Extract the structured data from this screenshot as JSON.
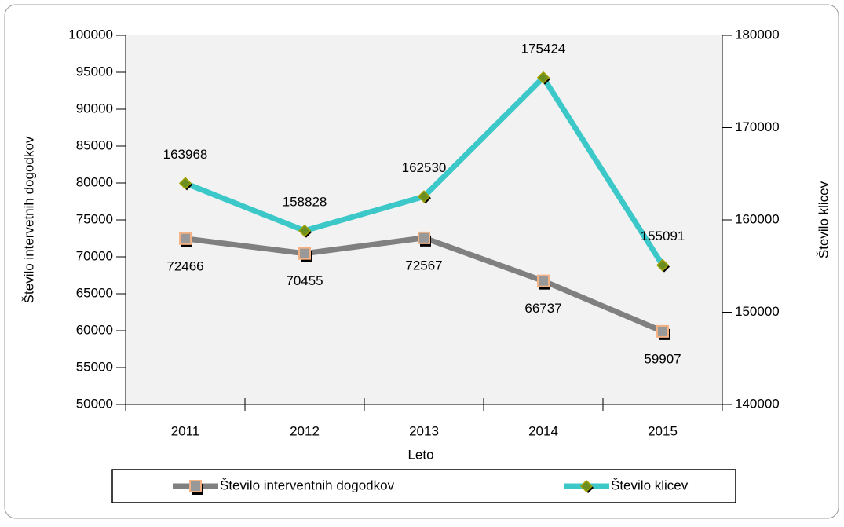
{
  "chart_data": {
    "type": "line",
    "x_label": "Leto",
    "y_label": "Število intervetnih dogodkov",
    "y2_label": "Število klicev",
    "categories": [
      "2011",
      "2012",
      "2013",
      "2014",
      "2015"
    ],
    "series": [
      {
        "name": "Število interventnih dogodkov",
        "color": "#808080",
        "marker_color": "#f4b183",
        "axis": "y",
        "values": [
          72466,
          70455,
          72567,
          66737,
          59907
        ]
      },
      {
        "name": "Število klicev",
        "color": "#3cc8c8",
        "marker_color": "#6b8e23",
        "axis": "y2",
        "values": [
          163968,
          158828,
          162530,
          175424,
          155091
        ]
      }
    ],
    "ylim": [
      50000,
      100000
    ],
    "yticks": [
      50000,
      55000,
      60000,
      65000,
      70000,
      75000,
      80000,
      85000,
      90000,
      95000,
      100000
    ],
    "y2lim": [
      140000,
      180000
    ],
    "y2ticks": [
      140000,
      150000,
      160000,
      170000,
      180000
    ],
    "legend": "bottom"
  }
}
